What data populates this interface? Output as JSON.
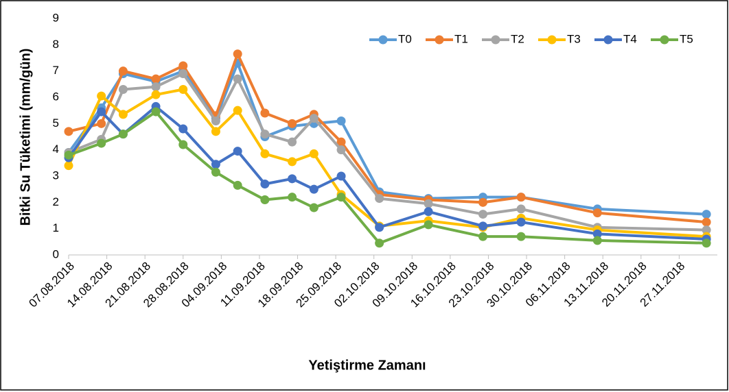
{
  "chart_data": {
    "type": "line",
    "y_label": "Bitki Su Tüketimi (mm/gün)",
    "x_label": "Yetiştirme Zamanı",
    "x": [
      "07.08.2018",
      "13.08.2018",
      "17.08.2018",
      "23.08.2018",
      "28.08.2018",
      "03.09.2018",
      "07.09.2018",
      "12.09.2018",
      "17.09.2018",
      "21.09.2018",
      "26.09.2018",
      "03.10.2018",
      "12.10.2018",
      "22.10.2018",
      "29.10.2018",
      "12.11.2018",
      "02.12.2018"
    ],
    "series": [
      {
        "name": "T0",
        "color": "#5b9bd5",
        "values": [
          3.9,
          5.6,
          6.9,
          6.6,
          7.0,
          5.2,
          7.3,
          4.5,
          4.9,
          5.0,
          5.1,
          2.4,
          2.15,
          2.2,
          2.2,
          1.75,
          1.55
        ]
      },
      {
        "name": "T1",
        "color": "#ed7d31",
        "values": [
          4.7,
          5.0,
          7.0,
          6.7,
          7.2,
          5.3,
          7.65,
          5.4,
          5.0,
          5.35,
          4.3,
          2.3,
          2.1,
          2.0,
          2.2,
          1.6,
          1.25
        ]
      },
      {
        "name": "T2",
        "color": "#a5a5a5",
        "values": [
          3.9,
          4.4,
          6.3,
          6.4,
          6.9,
          5.1,
          6.7,
          4.6,
          4.3,
          5.2,
          4.0,
          2.15,
          1.95,
          1.55,
          1.75,
          1.05,
          0.95
        ]
      },
      {
        "name": "T3",
        "color": "#ffc000",
        "values": [
          3.4,
          6.05,
          5.35,
          6.1,
          6.3,
          4.7,
          5.5,
          3.85,
          3.55,
          3.85,
          2.3,
          1.1,
          1.3,
          1.05,
          1.4,
          0.95,
          0.7
        ]
      },
      {
        "name": "T4",
        "color": "#4472c4",
        "values": [
          3.7,
          5.45,
          4.6,
          5.65,
          4.8,
          3.45,
          3.95,
          2.7,
          2.9,
          2.5,
          3.0,
          1.05,
          1.65,
          1.1,
          1.25,
          0.8,
          0.6
        ]
      },
      {
        "name": "T5",
        "color": "#70ad47",
        "values": [
          3.8,
          4.25,
          4.6,
          5.45,
          4.2,
          3.15,
          2.65,
          2.1,
          2.2,
          1.8,
          2.2,
          0.45,
          1.15,
          0.7,
          0.7,
          0.55,
          0.45
        ]
      }
    ],
    "xlim": [
      "07.08.2018",
      "04.12.2018"
    ],
    "xticks": [
      "07.08.2018",
      "14.08.2018",
      "21.08.2018",
      "28.08.2018",
      "04.09.2018",
      "11.09.2018",
      "18.09.2018",
      "25.09.2018",
      "02.10.2018",
      "09.10.2018",
      "16.10.2018",
      "23.10.2018",
      "30.10.2018",
      "06.11.2018",
      "13.11.2018",
      "20.11.2018",
      "27.11.2018"
    ],
    "ylim": [
      0,
      9
    ],
    "yticks": [
      0,
      1,
      2,
      3,
      4,
      5,
      6,
      7,
      8,
      9
    ],
    "grid": false,
    "legend": "top-right"
  }
}
